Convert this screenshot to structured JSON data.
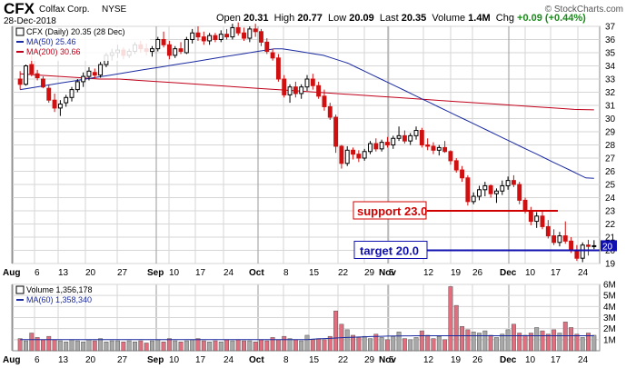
{
  "header": {
    "symbol": "CFX",
    "company": "Colfax Corp.",
    "exchange": "NYSE",
    "date": "28-Dec-2018",
    "open_label": "Open",
    "open": "20.31",
    "high_label": "High",
    "high": "20.77",
    "low_label": "Low",
    "low": "20.09",
    "last_label": "Last",
    "last": "20.35",
    "volume_label": "Volume",
    "volume": "1.4M",
    "chg_label": "Chg",
    "chg": "+0.09 (+0.44%)",
    "watermark": "© StockCharts.com"
  },
  "legend": {
    "price": "CFX (Daily) 20.35 (28 Dec)",
    "ma50": "MA(50) 25.46",
    "ma200": "MA(200) 30.66",
    "volume": "Volume 1,356,178",
    "vma60": "MA(60) 1,358,340"
  },
  "annotations": {
    "support": "support 23.0",
    "target": "target 20.0"
  },
  "colors": {
    "up": "#000000",
    "down": "#d01010",
    "ma50": "#1a2aa0",
    "ma200": "#c0001a",
    "support_line": "#d00000",
    "target_line": "#1010b0",
    "vol_up": "#a8a8a8",
    "vol_down": "#e07080",
    "grid": "#d6d6d6"
  },
  "chart_data": [
    {
      "type": "candlestick",
      "x_dates": [
        "2018-08-06",
        "2018-08-07",
        "2018-08-08",
        "2018-08-09",
        "2018-08-10",
        "2018-08-13",
        "2018-08-14",
        "2018-08-15",
        "2018-08-16",
        "2018-08-17",
        "2018-08-20",
        "2018-08-21",
        "2018-08-22",
        "2018-08-23",
        "2018-08-24",
        "2018-08-27",
        "2018-08-28",
        "2018-08-29",
        "2018-08-30",
        "2018-08-31",
        "2018-09-04",
        "2018-09-05",
        "2018-09-06",
        "2018-09-07",
        "2018-09-10",
        "2018-09-11",
        "2018-09-12",
        "2018-09-13",
        "2018-09-14",
        "2018-09-17",
        "2018-09-18",
        "2018-09-19",
        "2018-09-20",
        "2018-09-21",
        "2018-09-24",
        "2018-09-25",
        "2018-09-26",
        "2018-09-27",
        "2018-09-28",
        "2018-10-01",
        "2018-10-02",
        "2018-10-03",
        "2018-10-04",
        "2018-10-05",
        "2018-10-08",
        "2018-10-09",
        "2018-10-10",
        "2018-10-11",
        "2018-10-12",
        "2018-10-15",
        "2018-10-16",
        "2018-10-17",
        "2018-10-18",
        "2018-10-19",
        "2018-10-22",
        "2018-10-23",
        "2018-10-24",
        "2018-10-25",
        "2018-10-26",
        "2018-10-29",
        "2018-10-30",
        "2018-10-31",
        "2018-11-01",
        "2018-11-02",
        "2018-11-05",
        "2018-11-06",
        "2018-11-07",
        "2018-11-08",
        "2018-11-09",
        "2018-11-12",
        "2018-11-13",
        "2018-11-14",
        "2018-11-15",
        "2018-11-16",
        "2018-11-19",
        "2018-11-20",
        "2018-11-21",
        "2018-11-23",
        "2018-11-26",
        "2018-11-27",
        "2018-11-28",
        "2018-11-29",
        "2018-11-30",
        "2018-12-03",
        "2018-12-04",
        "2018-12-06",
        "2018-12-07",
        "2018-12-10",
        "2018-12-11",
        "2018-12-12",
        "2018-12-13",
        "2018-12-14",
        "2018-12-17",
        "2018-12-18",
        "2018-12-19",
        "2018-12-20",
        "2018-12-21",
        "2018-12-24",
        "2018-12-26",
        "2018-12-27",
        "2018-12-28"
      ],
      "ohlc": [
        [
          33.0,
          33.6,
          32.2,
          32.6
        ],
        [
          32.6,
          34.1,
          32.5,
          34.0
        ],
        [
          34.1,
          34.8,
          33.2,
          33.4
        ],
        [
          33.4,
          33.7,
          32.9,
          33.1
        ],
        [
          33.0,
          33.2,
          32.3,
          32.4
        ],
        [
          32.3,
          32.6,
          31.2,
          31.4
        ],
        [
          31.4,
          31.9,
          30.5,
          30.8
        ],
        [
          30.8,
          31.4,
          30.2,
          31.1
        ],
        [
          31.2,
          31.8,
          30.9,
          31.6
        ],
        [
          31.6,
          32.4,
          31.3,
          32.2
        ],
        [
          32.2,
          33.0,
          32.0,
          32.8
        ],
        [
          32.8,
          33.5,
          32.4,
          33.2
        ],
        [
          33.2,
          33.9,
          32.9,
          33.6
        ],
        [
          33.5,
          33.8,
          33.0,
          33.3
        ],
        [
          33.3,
          34.3,
          33.1,
          34.1
        ],
        [
          34.1,
          35.0,
          33.9,
          34.8
        ],
        [
          34.8,
          35.3,
          34.4,
          35.0
        ],
        [
          35.0,
          35.6,
          34.6,
          35.2
        ],
        [
          35.2,
          35.4,
          34.5,
          34.8
        ],
        [
          34.8,
          35.3,
          34.6,
          35.1
        ],
        [
          35.1,
          35.8,
          34.9,
          35.6
        ],
        [
          35.6,
          35.9,
          35.0,
          35.3
        ],
        [
          35.3,
          35.7,
          34.8,
          35.1
        ],
        [
          35.1,
          35.5,
          34.7,
          35.3
        ],
        [
          35.3,
          36.2,
          35.1,
          36.0
        ],
        [
          36.0,
          36.6,
          35.4,
          35.6
        ],
        [
          35.6,
          35.9,
          34.5,
          34.8
        ],
        [
          34.8,
          35.5,
          34.6,
          35.3
        ],
        [
          35.3,
          35.8,
          34.9,
          35.1
        ],
        [
          35.0,
          36.2,
          34.9,
          36.0
        ],
        [
          36.0,
          36.8,
          35.7,
          36.5
        ],
        [
          36.5,
          37.0,
          35.9,
          36.2
        ],
        [
          36.2,
          36.6,
          35.6,
          35.9
        ],
        [
          35.9,
          36.5,
          35.6,
          36.3
        ],
        [
          36.3,
          36.5,
          35.8,
          36.0
        ],
        [
          36.0,
          36.7,
          35.8,
          36.4
        ],
        [
          36.4,
          36.8,
          36.0,
          36.2
        ],
        [
          36.2,
          37.2,
          36.0,
          36.9
        ],
        [
          36.9,
          37.3,
          36.3,
          36.5
        ],
        [
          36.5,
          36.9,
          35.9,
          36.1
        ],
        [
          36.1,
          37.0,
          35.8,
          36.8
        ],
        [
          36.8,
          37.2,
          36.2,
          36.6
        ],
        [
          36.6,
          36.8,
          35.5,
          35.8
        ],
        [
          35.8,
          36.1,
          34.9,
          35.1
        ],
        [
          35.0,
          35.3,
          34.4,
          34.6
        ],
        [
          34.6,
          34.9,
          32.8,
          33.0
        ],
        [
          33.0,
          33.3,
          31.6,
          31.8
        ],
        [
          31.8,
          32.6,
          31.2,
          32.4
        ],
        [
          32.4,
          32.8,
          31.6,
          31.9
        ],
        [
          31.9,
          32.6,
          31.5,
          32.4
        ],
        [
          32.4,
          33.3,
          32.1,
          33.0
        ],
        [
          33.0,
          33.4,
          32.2,
          32.5
        ],
        [
          32.5,
          32.8,
          31.5,
          31.7
        ],
        [
          31.7,
          32.2,
          30.6,
          30.9
        ],
        [
          30.9,
          31.2,
          29.9,
          30.1
        ],
        [
          30.1,
          30.3,
          27.4,
          27.9
        ],
        [
          27.9,
          28.0,
          26.2,
          26.6
        ],
        [
          26.6,
          27.9,
          26.4,
          27.6
        ],
        [
          27.6,
          27.8,
          26.9,
          27.3
        ],
        [
          27.3,
          27.6,
          26.7,
          27.0
        ],
        [
          27.0,
          27.7,
          26.8,
          27.5
        ],
        [
          27.5,
          28.3,
          27.3,
          28.1
        ],
        [
          28.1,
          28.5,
          27.5,
          27.7
        ],
        [
          27.7,
          28.4,
          27.5,
          28.2
        ],
        [
          28.2,
          28.6,
          27.8,
          28.0
        ],
        [
          28.0,
          28.7,
          27.7,
          28.5
        ],
        [
          28.5,
          29.4,
          28.3,
          28.7
        ],
        [
          28.7,
          29.1,
          28.1,
          28.3
        ],
        [
          28.3,
          28.9,
          28.0,
          28.7
        ],
        [
          28.7,
          29.4,
          28.4,
          29.1
        ],
        [
          29.1,
          29.3,
          27.8,
          28.0
        ],
        [
          28.0,
          28.5,
          27.6,
          27.9
        ],
        [
          27.9,
          28.2,
          27.3,
          27.6
        ],
        [
          27.6,
          28.0,
          27.2,
          27.8
        ],
        [
          27.8,
          28.3,
          27.4,
          27.5
        ],
        [
          27.5,
          27.6,
          26.5,
          26.8
        ],
        [
          26.8,
          27.0,
          25.9,
          26.1
        ],
        [
          26.1,
          26.4,
          25.2,
          25.5
        ],
        [
          25.5,
          25.7,
          23.4,
          23.7
        ],
        [
          23.7,
          24.4,
          23.5,
          24.1
        ],
        [
          24.1,
          24.9,
          23.8,
          24.6
        ],
        [
          24.6,
          25.2,
          24.1,
          24.9
        ],
        [
          24.9,
          25.0,
          24.0,
          24.3
        ],
        [
          24.3,
          24.7,
          23.6,
          24.5
        ],
        [
          24.5,
          25.3,
          24.2,
          24.9
        ],
        [
          24.9,
          25.6,
          24.6,
          25.3
        ],
        [
          25.3,
          25.7,
          24.8,
          25.0
        ],
        [
          25.0,
          25.2,
          23.5,
          23.8
        ],
        [
          23.8,
          24.0,
          22.8,
          23.0
        ],
        [
          23.0,
          23.3,
          21.9,
          22.2
        ],
        [
          22.2,
          22.9,
          21.7,
          22.6
        ],
        [
          22.6,
          23.0,
          21.6,
          21.8
        ],
        [
          21.8,
          22.3,
          20.9,
          21.1
        ],
        [
          21.1,
          21.6,
          20.4,
          20.6
        ],
        [
          20.6,
          21.4,
          20.3,
          21.1
        ],
        [
          21.1,
          22.2,
          20.5,
          20.7
        ],
        [
          20.7,
          21.0,
          19.8,
          20.0
        ],
        [
          20.0,
          20.4,
          19.2,
          19.4
        ],
        [
          19.4,
          20.6,
          19.1,
          20.4
        ],
        [
          20.4,
          20.8,
          19.6,
          20.3
        ],
        [
          20.31,
          20.77,
          20.09,
          20.35
        ]
      ],
      "ma50": [
        32.2,
        32.3,
        32.4,
        32.5,
        32.6,
        32.7,
        32.8,
        32.9,
        33.0,
        33.1,
        33.2,
        33.3,
        33.4,
        33.5,
        33.6,
        33.7,
        33.8,
        33.9,
        34.0,
        34.1,
        34.2,
        34.3,
        34.4,
        34.5,
        34.6,
        34.7,
        34.8,
        34.9,
        35.0,
        35.1,
        35.2,
        35.3,
        35.3,
        35.2,
        35.1,
        35.0,
        34.9,
        34.8,
        34.6,
        34.4,
        34.2,
        33.9,
        33.6,
        33.3,
        33.0,
        32.7,
        32.4,
        32.1,
        31.8,
        31.5,
        31.2,
        30.9,
        30.6,
        30.3,
        30.0,
        29.7,
        29.4,
        29.1,
        28.8,
        28.5,
        28.2,
        27.9,
        27.6,
        27.3,
        27.0,
        26.7,
        26.4,
        26.1,
        25.8,
        25.5,
        25.46
      ],
      "ma200": [
        33.4,
        33.3,
        33.2,
        33.1,
        33.0,
        33.0,
        32.9,
        32.8,
        32.7,
        32.6,
        32.5,
        32.4,
        32.3,
        32.2,
        32.1,
        32.0,
        31.9,
        31.8,
        31.7,
        31.6,
        31.5,
        31.4,
        31.3,
        31.2,
        31.1,
        31.0,
        30.9,
        30.8,
        30.7,
        30.66
      ],
      "ylim": [
        19,
        37
      ],
      "support": 23.0,
      "target": 20.0,
      "x_labels": [
        "Aug",
        "6",
        "13",
        "20",
        "27",
        "Sep",
        "10",
        "17",
        "24",
        "Oct",
        "8",
        "15",
        "22",
        "29",
        "Nov",
        "5",
        "12",
        "19",
        "26",
        "Dec",
        "10",
        "17",
        "24"
      ],
      "y_ticks": [
        19,
        20,
        21,
        22,
        23,
        24,
        25,
        26,
        27,
        28,
        29,
        30,
        31,
        32,
        33,
        34,
        35,
        36,
        37
      ]
    },
    {
      "type": "bar",
      "title": "Volume",
      "values_millions": [
        1.1,
        0.9,
        1.6,
        1.2,
        1.0,
        1.3,
        1.0,
        0.9,
        0.8,
        1.0,
        0.9,
        0.8,
        1.0,
        0.9,
        1.1,
        0.8,
        0.9,
        0.9,
        0.8,
        0.9,
        0.8,
        0.9,
        0.7,
        0.9,
        1.0,
        0.8,
        1.1,
        0.9,
        0.8,
        0.9,
        1.0,
        1.1,
        0.9,
        0.8,
        0.9,
        0.8,
        1.0,
        0.9,
        1.0,
        0.9,
        0.9,
        0.8,
        1.0,
        0.9,
        1.2,
        1.0,
        1.3,
        1.1,
        1.0,
        0.9,
        1.4,
        1.0,
        1.1,
        1.0,
        1.3,
        3.6,
        2.4,
        1.9,
        1.4,
        1.2,
        1.3,
        1.1,
        1.5,
        1.2,
        1.0,
        1.3,
        1.7,
        1.1,
        1.0,
        1.2,
        1.8,
        1.4,
        1.1,
        1.3,
        1.0,
        5.8,
        4.1,
        2.2,
        1.9,
        1.7,
        1.6,
        1.8,
        1.4,
        1.2,
        1.5,
        1.9,
        2.4,
        1.6,
        1.4,
        1.6,
        2.1,
        1.8,
        1.5,
        1.9,
        1.6,
        2.6,
        2.1,
        1.5,
        1.2,
        1.6,
        1.4
      ],
      "ma60_millions": [
        1.0,
        1.0,
        1.0,
        1.0,
        1.0,
        1.0,
        1.0,
        1.0,
        1.0,
        1.0,
        1.0,
        1.0,
        1.0,
        1.0,
        1.0,
        1.0,
        1.0,
        1.0,
        1.0,
        1.0,
        1.0,
        1.0,
        1.0,
        1.0,
        1.0,
        1.0,
        1.0,
        1.0,
        1.0,
        1.0,
        1.0,
        1.0,
        1.0,
        1.0,
        1.0,
        1.0,
        1.0,
        1.0,
        1.0,
        1.0,
        1.0,
        1.0,
        1.0,
        1.0,
        1.0,
        1.0,
        1.0,
        1.0,
        1.0,
        1.0,
        1.0,
        1.05,
        1.08,
        1.1,
        1.12,
        1.15,
        1.18,
        1.2,
        1.22,
        1.24,
        1.26,
        1.28,
        1.3,
        1.31,
        1.32,
        1.33,
        1.34,
        1.35,
        1.35,
        1.36,
        1.36,
        1.36,
        1.36,
        1.36,
        1.36,
        1.36,
        1.36,
        1.36,
        1.36,
        1.36,
        1.36,
        1.36,
        1.36,
        1.36,
        1.36,
        1.36,
        1.36,
        1.36,
        1.36,
        1.36,
        1.36,
        1.36,
        1.36,
        1.36,
        1.36,
        1.36,
        1.36,
        1.36,
        1.36,
        1.36,
        1.36
      ],
      "ylim": [
        0,
        6
      ],
      "y_ticks": [
        "1M",
        "2M",
        "3M",
        "4M",
        "5M",
        "6M"
      ]
    }
  ]
}
